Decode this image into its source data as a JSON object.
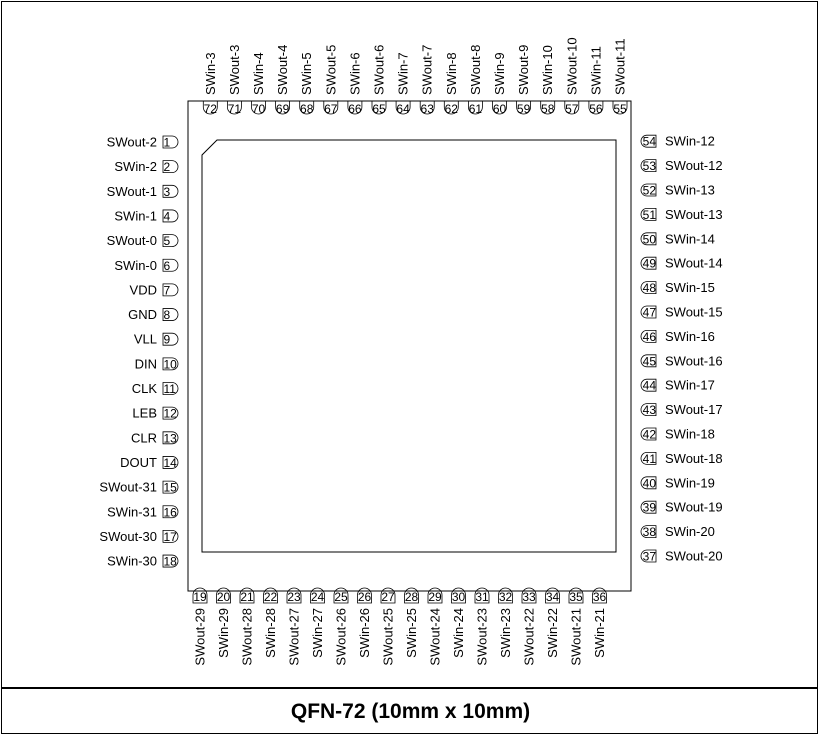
{
  "title": "QFN-72 (10mm x 10mm)",
  "pins": {
    "left": [
      {
        "num": "1",
        "name": "SWout-2"
      },
      {
        "num": "2",
        "name": "SWin-2"
      },
      {
        "num": "3",
        "name": "SWout-1"
      },
      {
        "num": "4",
        "name": "SWin-1"
      },
      {
        "num": "5",
        "name": "SWout-0"
      },
      {
        "num": "6",
        "name": "SWin-0"
      },
      {
        "num": "7",
        "name": "VDD"
      },
      {
        "num": "8",
        "name": "GND"
      },
      {
        "num": "9",
        "name": "VLL"
      },
      {
        "num": "10",
        "name": "DIN"
      },
      {
        "num": "11",
        "name": "CLK"
      },
      {
        "num": "12",
        "name": "LEB"
      },
      {
        "num": "13",
        "name": "CLR"
      },
      {
        "num": "14",
        "name": "DOUT"
      },
      {
        "num": "15",
        "name": "SWout-31"
      },
      {
        "num": "16",
        "name": "SWin-31"
      },
      {
        "num": "17",
        "name": "SWout-30"
      },
      {
        "num": "18",
        "name": "SWin-30"
      }
    ],
    "bottom": [
      {
        "num": "19",
        "name": "SWout-29"
      },
      {
        "num": "20",
        "name": "SWin-29"
      },
      {
        "num": "21",
        "name": "SWout-28"
      },
      {
        "num": "22",
        "name": "SWin-28"
      },
      {
        "num": "23",
        "name": "SWout-27"
      },
      {
        "num": "24",
        "name": "SWin-27"
      },
      {
        "num": "25",
        "name": "SWout-26"
      },
      {
        "num": "26",
        "name": "SWin-26"
      },
      {
        "num": "27",
        "name": "SWout-25"
      },
      {
        "num": "28",
        "name": "SWin-25"
      },
      {
        "num": "29",
        "name": "SWout-24"
      },
      {
        "num": "30",
        "name": "SWin-24"
      },
      {
        "num": "31",
        "name": "SWout-23"
      },
      {
        "num": "32",
        "name": "SWin-23"
      },
      {
        "num": "33",
        "name": "SWout-22"
      },
      {
        "num": "34",
        "name": "SWin-22"
      },
      {
        "num": "35",
        "name": "SWout-21"
      },
      {
        "num": "36",
        "name": "SWin-21"
      }
    ],
    "right": [
      {
        "num": "37",
        "name": "SWout-20"
      },
      {
        "num": "38",
        "name": "SWin-20"
      },
      {
        "num": "39",
        "name": "SWout-19"
      },
      {
        "num": "40",
        "name": "SWin-19"
      },
      {
        "num": "41",
        "name": "SWout-18"
      },
      {
        "num": "42",
        "name": "SWin-18"
      },
      {
        "num": "43",
        "name": "SWout-17"
      },
      {
        "num": "44",
        "name": "SWin-17"
      },
      {
        "num": "45",
        "name": "SWout-16"
      },
      {
        "num": "46",
        "name": "SWin-16"
      },
      {
        "num": "47",
        "name": "SWout-15"
      },
      {
        "num": "48",
        "name": "SWin-15"
      },
      {
        "num": "49",
        "name": "SWout-14"
      },
      {
        "num": "50",
        "name": "SWin-14"
      },
      {
        "num": "51",
        "name": "SWout-13"
      },
      {
        "num": "52",
        "name": "SWin-13"
      },
      {
        "num": "53",
        "name": "SWout-12"
      },
      {
        "num": "54",
        "name": "SWin-12"
      }
    ],
    "top": [
      {
        "num": "55",
        "name": "SWout-11"
      },
      {
        "num": "56",
        "name": "SWin-11"
      },
      {
        "num": "57",
        "name": "SWout-10"
      },
      {
        "num": "58",
        "name": "SWin-10"
      },
      {
        "num": "59",
        "name": "SWout-9"
      },
      {
        "num": "60",
        "name": "SWin-9"
      },
      {
        "num": "61",
        "name": "SWout-8"
      },
      {
        "num": "62",
        "name": "SWin-8"
      },
      {
        "num": "63",
        "name": "SWout-7"
      },
      {
        "num": "64",
        "name": "SWin-7"
      },
      {
        "num": "65",
        "name": "SWout-6"
      },
      {
        "num": "66",
        "name": "SWin-6"
      },
      {
        "num": "67",
        "name": "SWout-5"
      },
      {
        "num": "68",
        "name": "SWin-5"
      },
      {
        "num": "69",
        "name": "SWout-4"
      },
      {
        "num": "70",
        "name": "SWin-4"
      },
      {
        "num": "71",
        "name": "SWout-3"
      },
      {
        "num": "72",
        "name": "SWin-3"
      }
    ]
  }
}
